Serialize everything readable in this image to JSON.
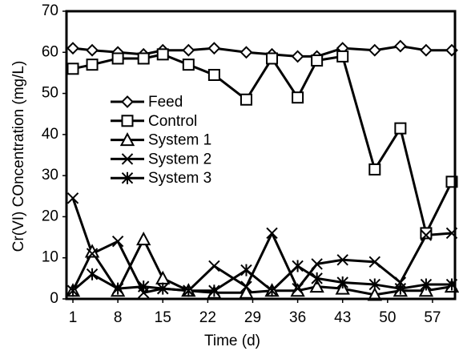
{
  "chart_data": {
    "type": "line",
    "x_label": "Time (d)",
    "y_label": "Cr(VI) COncentration (mg/L)",
    "x": [
      1,
      4,
      8,
      12,
      15,
      19,
      23,
      28,
      32,
      36,
      39,
      43,
      48,
      52,
      56,
      60
    ],
    "xlim": [
      0,
      60.5
    ],
    "xticks": [
      1,
      8,
      15,
      22,
      29,
      36,
      43,
      50,
      57
    ],
    "ylim": [
      0,
      70
    ],
    "yticks": [
      0,
      10,
      20,
      30,
      40,
      50,
      60,
      70
    ],
    "legend": "upper-left",
    "series": [
      {
        "name": "Feed",
        "color": "#000000",
        "marker": "diamond",
        "values": [
          61,
          60.5,
          60,
          59.5,
          60.5,
          60.5,
          61,
          60,
          59.5,
          59,
          59,
          61,
          60.5,
          61.5,
          60.5,
          60.5
        ]
      },
      {
        "name": "Control",
        "color": "#000000",
        "marker": "square",
        "values": [
          56,
          57,
          58.5,
          58.5,
          59.5,
          57,
          54.5,
          48.5,
          58.5,
          49,
          58,
          59,
          31.5,
          41.5,
          16,
          28.5
        ]
      },
      {
        "name": "System 1",
        "color": "#000000",
        "marker": "triangle",
        "values": [
          2,
          11.5,
          2,
          14.5,
          5,
          2,
          1.5,
          1.5,
          2,
          2,
          3,
          2.5,
          1,
          2,
          2,
          3
        ]
      },
      {
        "name": "System 2",
        "color": "#000000",
        "marker": "x",
        "values": [
          24.5,
          11,
          14,
          1.5,
          2.5,
          2,
          8,
          3,
          16,
          2.5,
          8.5,
          9.5,
          9,
          4,
          15.5,
          16
        ]
      },
      {
        "name": "System 3",
        "color": "#000000",
        "marker": "star",
        "values": [
          2,
          6,
          2.5,
          3,
          2.5,
          2,
          2,
          7,
          2,
          8,
          5,
          4,
          3.5,
          2.5,
          3.5,
          3.5
        ]
      }
    ]
  }
}
